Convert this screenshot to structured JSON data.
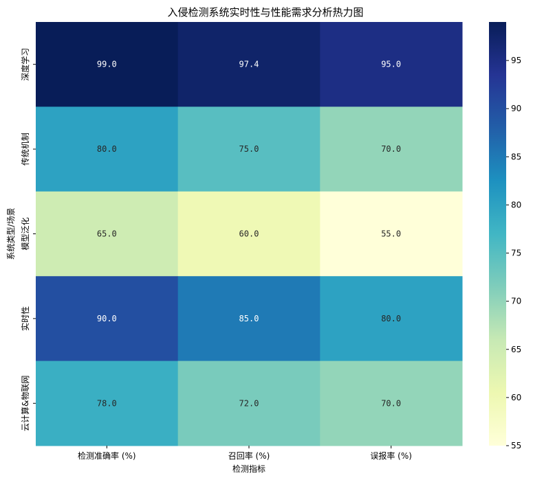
{
  "chart_data": {
    "type": "heatmap",
    "title": "入侵检测系统实时性与性能需求分析热力图",
    "xlabel": "检测指标",
    "ylabel_lines": [
      "系统类型/场景",
      "模型泛化"
    ],
    "x_categories": [
      "检测准确率 (%)",
      "召回率 (%)",
      "误报率 (%)"
    ],
    "y_categories": [
      "深度学习",
      "传统机制",
      "模型泛化",
      "实时性",
      "云计算&物联网"
    ],
    "y_tick_labels": [
      "深度学习",
      "传统机制",
      "",
      "实时性",
      "云计算&物联网"
    ],
    "values": [
      [
        99.0,
        97.4,
        95.0
      ],
      [
        80.0,
        75.0,
        70.0
      ],
      [
        65.0,
        60.0,
        55.0
      ],
      [
        90.0,
        85.0,
        80.0
      ],
      [
        78.0,
        72.0,
        70.0
      ]
    ],
    "cell_labels": [
      [
        "99.0",
        "97.4",
        "95.0"
      ],
      [
        "80.0",
        "75.0",
        "70.0"
      ],
      [
        "65.0",
        "60.0",
        "55.0"
      ],
      [
        "90.0",
        "85.0",
        "80.0"
      ],
      [
        "78.0",
        "72.0",
        "70.0"
      ]
    ],
    "colormap": "YlGnBu",
    "colormap_stops": [
      "#ffffd9",
      "#edf8b1",
      "#c7e9b4",
      "#7fcdbb",
      "#41b6c4",
      "#1d91c0",
      "#225ea8",
      "#253494",
      "#081d58"
    ],
    "vmin": 55,
    "vmax": 99,
    "colorbar_ticks": [
      "55",
      "60",
      "65",
      "70",
      "75",
      "80",
      "85",
      "90",
      "95"
    ],
    "grid": false,
    "colorbar": "right"
  }
}
